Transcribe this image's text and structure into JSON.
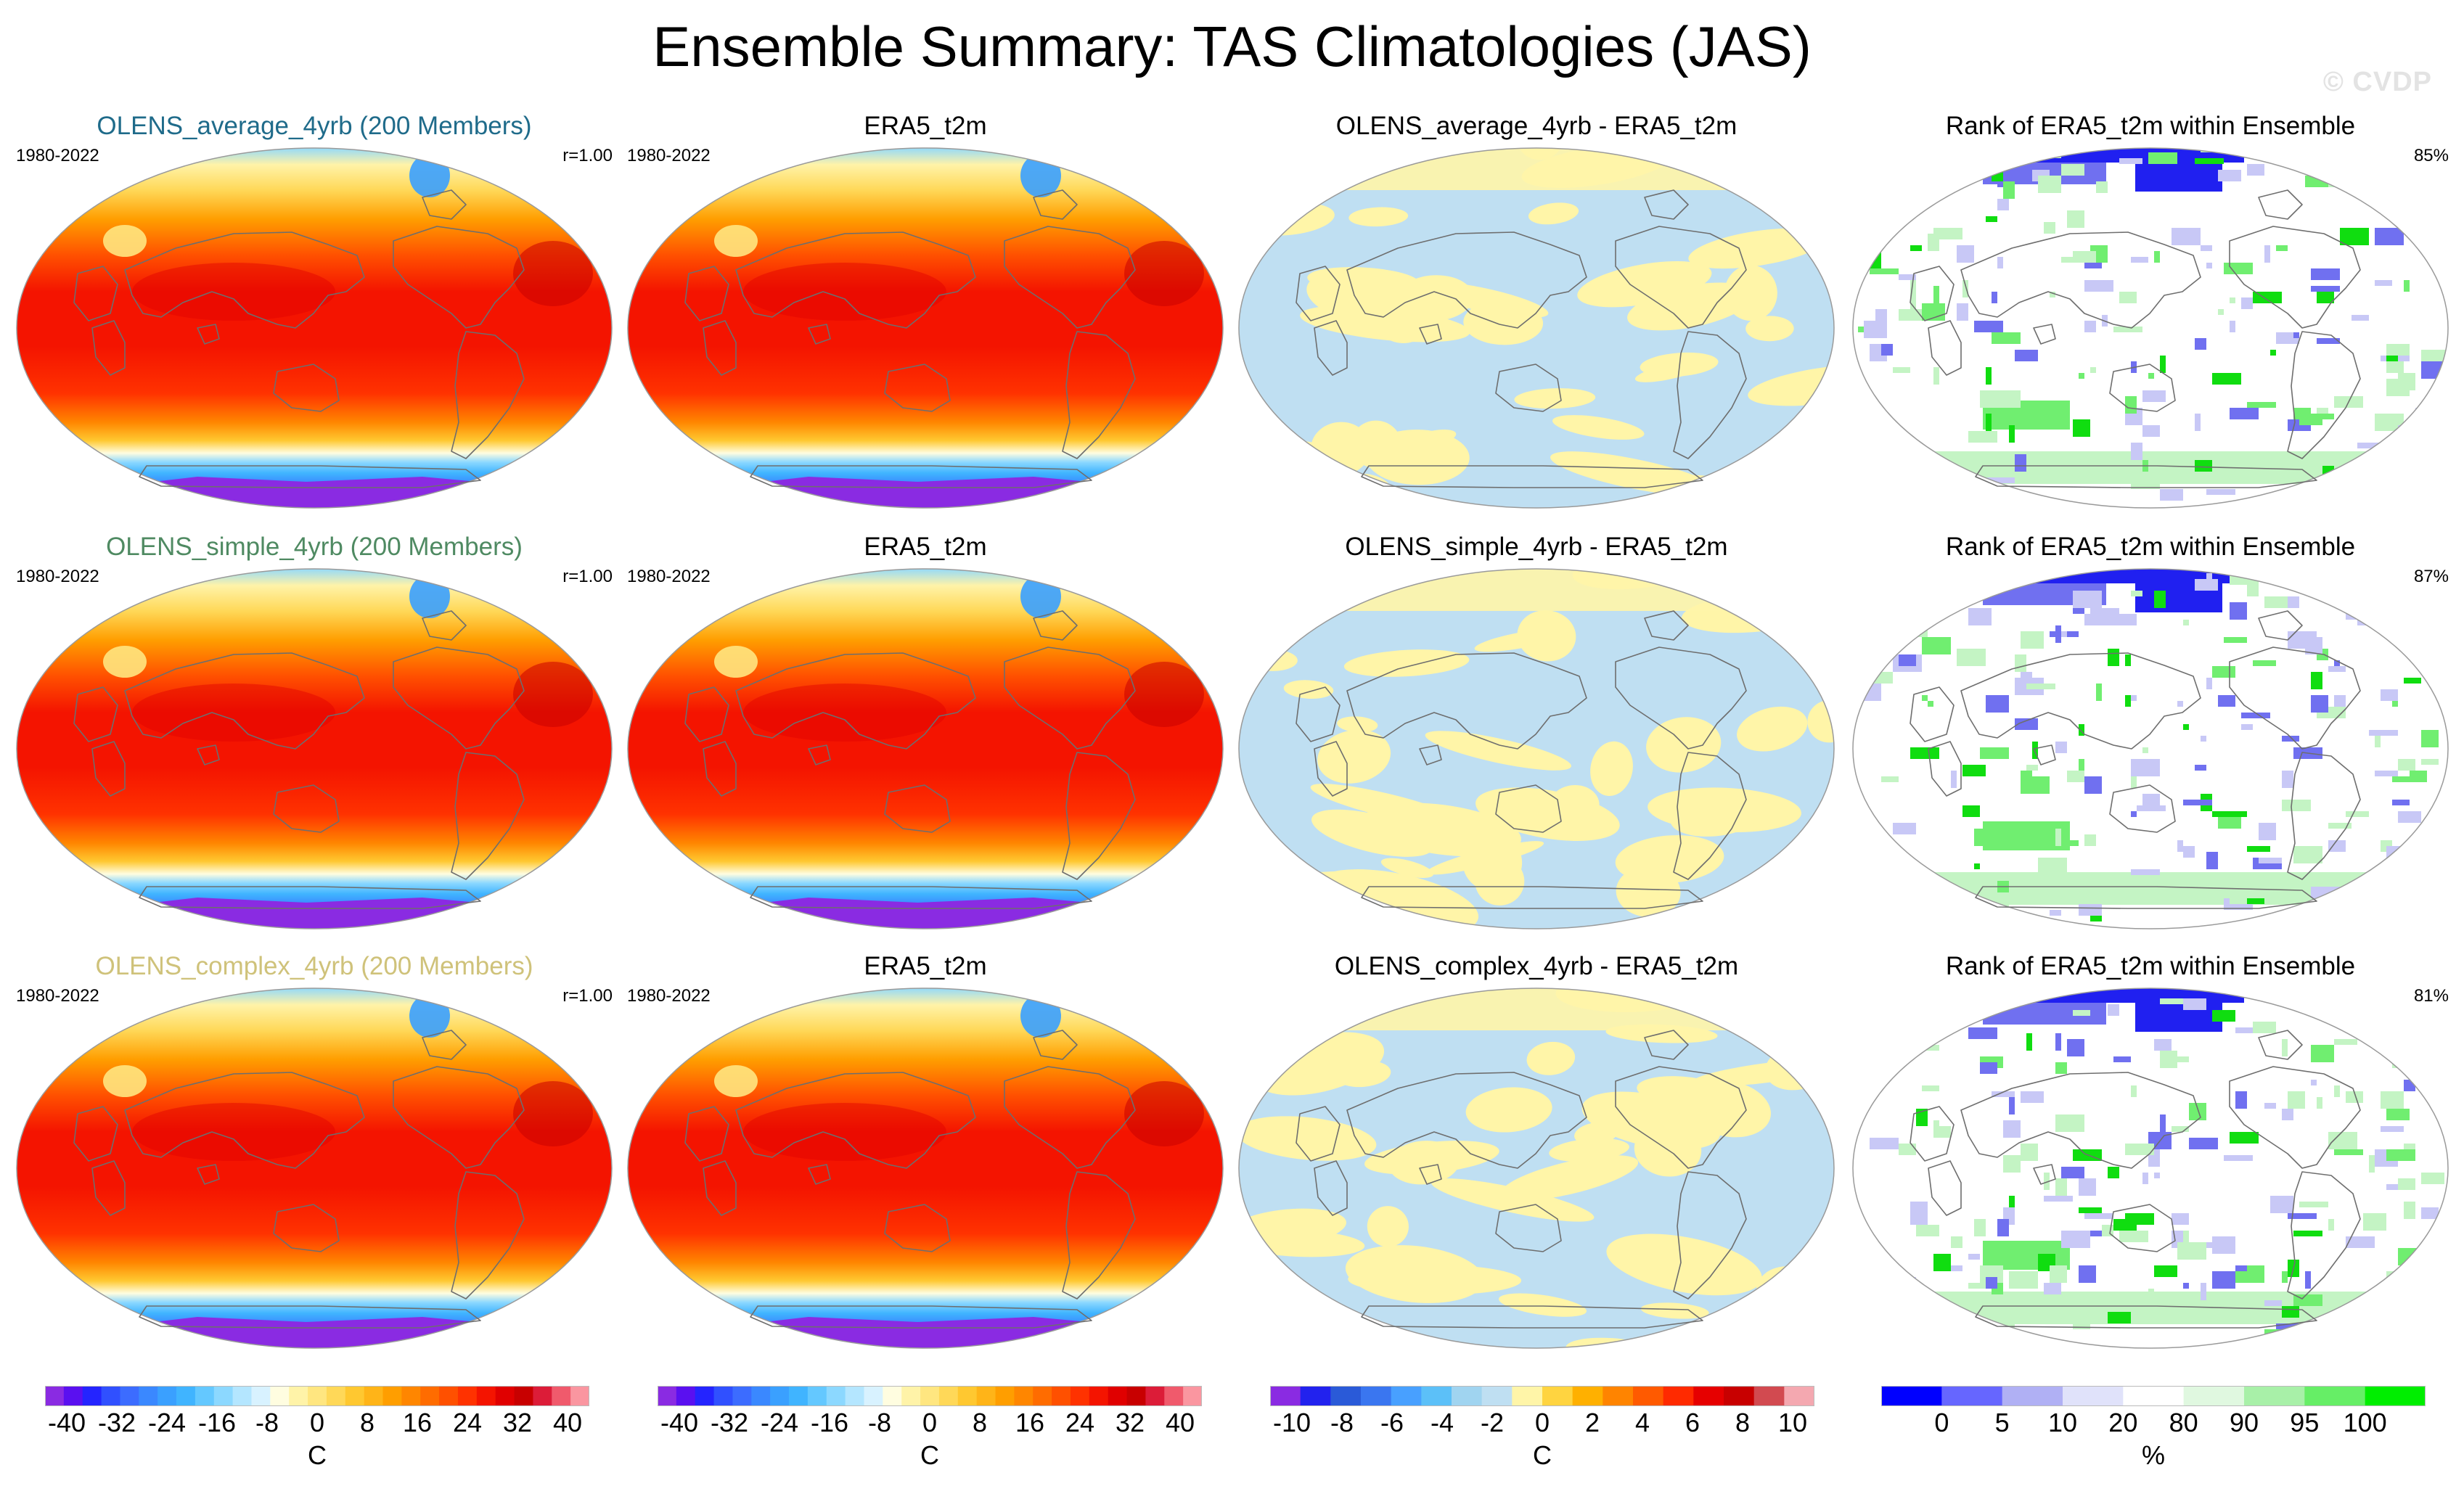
{
  "title": "Ensemble Summary: TAS Climatologies (JAS)",
  "watermark": "© CVDP",
  "rows": [
    {
      "model_title": "OLENS_average_4yrb (200 Members)",
      "model_title_color": "#1f6b8a",
      "period": "1980-2022",
      "corr": "r=1.00",
      "obs_title": "ERA5_t2m",
      "obs_period": "1980-2022",
      "diff_title": "OLENS_average_4yrb - ERA5_t2m",
      "rank_title": "Rank of ERA5_t2m within Ensemble",
      "rank_pct": "85%"
    },
    {
      "model_title": "OLENS_simple_4yrb (200 Members)",
      "model_title_color": "#4f8a62",
      "period": "1980-2022",
      "corr": "r=1.00",
      "obs_title": "ERA5_t2m",
      "obs_period": "1980-2022",
      "diff_title": "OLENS_simple_4yrb - ERA5_t2m",
      "rank_title": "Rank of ERA5_t2m within Ensemble",
      "rank_pct": "87%"
    },
    {
      "model_title": "OLENS_complex_4yrb (200 Members)",
      "model_title_color": "#cfc27a",
      "period": "1980-2022",
      "corr": "r=1.00",
      "obs_title": "ERA5_t2m",
      "obs_period": "1980-2022",
      "diff_title": "OLENS_complex_4yrb - ERA5_t2m",
      "rank_title": "Rank of ERA5_t2m within Ensemble",
      "rank_pct": "81%"
    }
  ],
  "colorbars": [
    {
      "id": "tas",
      "unit": "C",
      "ticks": [
        "-40",
        "-32",
        "-24",
        "-16",
        "-8",
        "0",
        "8",
        "16",
        "24",
        "32",
        "40"
      ],
      "colors": [
        "#8a2be2",
        "#5a10f0",
        "#2424ff",
        "#3050ff",
        "#3c6cff",
        "#3a88ff",
        "#3aa0ff",
        "#40b4ff",
        "#64c8ff",
        "#8cd8ff",
        "#b4e6ff",
        "#d8f2ff",
        "#fffde0",
        "#fff3a8",
        "#ffe680",
        "#ffd858",
        "#ffc830",
        "#ffb418",
        "#ff9e00",
        "#ff8600",
        "#ff6c00",
        "#ff5000",
        "#ff3200",
        "#f41400",
        "#e00000",
        "#c80000",
        "#dc1c38",
        "#f05a6c",
        "#fa96a0"
      ]
    },
    {
      "id": "tas_obs",
      "unit": "C",
      "ticks": [
        "-40",
        "-32",
        "-24",
        "-16",
        "-8",
        "0",
        "8",
        "16",
        "24",
        "32",
        "40"
      ],
      "colors": [
        "#8a2be2",
        "#5a10f0",
        "#2424ff",
        "#3050ff",
        "#3c6cff",
        "#3a88ff",
        "#3aa0ff",
        "#40b4ff",
        "#64c8ff",
        "#8cd8ff",
        "#b4e6ff",
        "#d8f2ff",
        "#fffde0",
        "#fff3a8",
        "#ffe680",
        "#ffd858",
        "#ffc830",
        "#ffb418",
        "#ff9e00",
        "#ff8600",
        "#ff6c00",
        "#ff5000",
        "#ff3200",
        "#f41400",
        "#e00000",
        "#c80000",
        "#dc1c38",
        "#f05a6c",
        "#fa96a0"
      ]
    },
    {
      "id": "diff",
      "unit": "C",
      "ticks": [
        "-10",
        "-8",
        "-6",
        "-4",
        "-2",
        "0",
        "2",
        "4",
        "6",
        "8",
        "10"
      ],
      "colors": [
        "#8a2be2",
        "#2222ee",
        "#2a5ad8",
        "#3a76f0",
        "#48a0ff",
        "#5cc0f8",
        "#a0d4f0",
        "#bfdff2",
        "#fff5a8",
        "#ffd440",
        "#ffb000",
        "#ff8400",
        "#ff5a00",
        "#ff2a00",
        "#e60000",
        "#c80000",
        "#d24a50",
        "#f4a8b0"
      ]
    },
    {
      "id": "rank",
      "unit": "%",
      "ticks": [
        "0",
        "5",
        "10",
        "20",
        "80",
        "90",
        "95",
        "100"
      ],
      "colors": [
        "#0000ff",
        "#6666ff",
        "#b0b0f4",
        "#e0e2fa",
        "#ffffff",
        "#e0f8e0",
        "#a8f0a8",
        "#66ee66",
        "#00ee00"
      ]
    }
  ],
  "map_colors": {
    "ocean_diff": "#bfdff2",
    "pos_diff": "#fff5a8",
    "coast": "#6e6e6e",
    "rank_neg_dark": "#2020f0",
    "rank_neg_mid": "#7070f0",
    "rank_neg_light": "#c8c8f6",
    "rank_pos_light": "#c4f4c4",
    "rank_pos_mid": "#70ee70",
    "rank_pos_dark": "#10dd10"
  }
}
